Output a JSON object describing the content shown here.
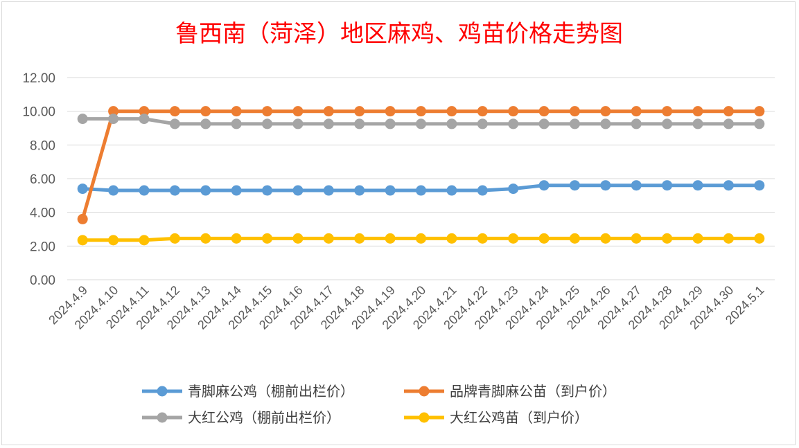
{
  "chart_data": {
    "type": "line",
    "title": "鲁西南（菏泽）地区麻鸡、鸡苗价格走势图",
    "xlabel": "",
    "ylabel": "",
    "ylim": [
      0,
      12
    ],
    "yticks": [
      "0.00",
      "2.00",
      "4.00",
      "6.00",
      "8.00",
      "10.00",
      "12.00"
    ],
    "grid": true,
    "legend_position": "bottom",
    "x": [
      "2024.4.9",
      "2024.4.10",
      "2024.4.11",
      "2024.4.12",
      "2024.4.13",
      "2024.4.14",
      "2024.4.15",
      "2024.4.16",
      "2024.4.17",
      "2024.4.18",
      "2024.4.19",
      "2024.4.20",
      "2024.4.21",
      "2024.4.22",
      "2024.4.23",
      "2024.4.24",
      "2024.4.25",
      "2024.4.26",
      "2024.4.27",
      "2024.4.28",
      "2024.4.29",
      "2024.4.30",
      "2024.5.1"
    ],
    "series": [
      {
        "name": "青脚麻公鸡（棚前出栏价）",
        "color": "#5b9bd5",
        "values": [
          5.4,
          5.3,
          5.3,
          5.3,
          5.3,
          5.3,
          5.3,
          5.3,
          5.3,
          5.3,
          5.3,
          5.3,
          5.3,
          5.3,
          5.4,
          5.6,
          5.6,
          5.6,
          5.6,
          5.6,
          5.6,
          5.6,
          5.6
        ]
      },
      {
        "name": "品牌青脚麻公苗（到户价）",
        "color": "#ed7d31",
        "values": [
          3.6,
          10.0,
          10.0,
          10.0,
          10.0,
          10.0,
          10.0,
          10.0,
          10.0,
          10.0,
          10.0,
          10.0,
          10.0,
          10.0,
          10.0,
          10.0,
          10.0,
          10.0,
          10.0,
          10.0,
          10.0,
          10.0,
          10.0
        ]
      },
      {
        "name": "大红公鸡（棚前出栏价）",
        "color": "#a5a5a5",
        "values": [
          9.55,
          9.55,
          9.55,
          9.25,
          9.25,
          9.25,
          9.25,
          9.25,
          9.25,
          9.25,
          9.25,
          9.25,
          9.25,
          9.25,
          9.25,
          9.25,
          9.25,
          9.25,
          9.25,
          9.25,
          9.25,
          9.25,
          9.25
        ]
      },
      {
        "name": "大红公鸡苗（到户价）",
        "color": "#ffc000",
        "values": [
          2.35,
          2.35,
          2.35,
          2.45,
          2.45,
          2.45,
          2.45,
          2.45,
          2.45,
          2.45,
          2.45,
          2.45,
          2.45,
          2.45,
          2.45,
          2.45,
          2.45,
          2.45,
          2.45,
          2.45,
          2.45,
          2.45,
          2.45
        ]
      }
    ]
  }
}
